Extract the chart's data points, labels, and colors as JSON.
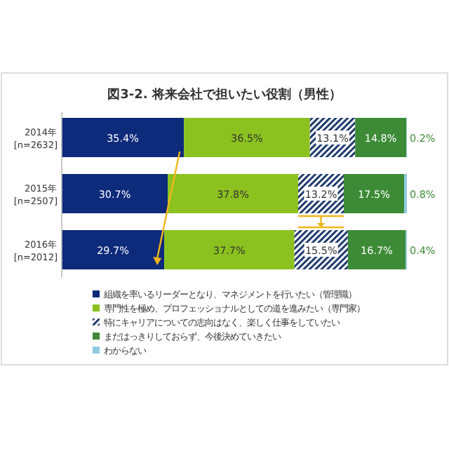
{
  "chart_data": {
    "type": "bar",
    "orientation": "horizontal",
    "stacked": true,
    "title": "図3-2. 将来会社で担いたい役割（男性）",
    "categories": [
      "2014年\n[n=2632]",
      "2015年\n[n=2507]",
      "2016年\n[n=2012]"
    ],
    "series": [
      {
        "name": "組織を率いるリーダーとなり、マネジメントを行いたい（管理職）",
        "color": "#0e2a7a",
        "values": [
          35.4,
          30.7,
          29.7
        ],
        "value_labels": [
          "35.4%",
          "30.7%",
          "29.7%"
        ]
      },
      {
        "name": "専門性を極め、プロフェッショナルとしての道を進みたい（専門家）",
        "color": "#8cc21f",
        "values": [
          36.5,
          37.8,
          37.7
        ],
        "value_labels": [
          "36.5%",
          "37.8%",
          "37.7%"
        ]
      },
      {
        "name": "特にキャリアについての志向はなく、楽しく仕事をしていたい",
        "color": "#1f3a6e",
        "values": [
          13.1,
          13.2,
          15.5
        ],
        "value_labels": [
          "13.1%",
          "13.2%",
          "15.5%"
        ]
      },
      {
        "name": "まだはっきりしておらず、今後決めていきたい",
        "color": "#3d8b37",
        "values": [
          14.8,
          17.5,
          16.7
        ],
        "value_labels": [
          "14.8%",
          "17.5%",
          "16.7%"
        ]
      },
      {
        "name": "わからない",
        "color": "#8fcbe0",
        "values": [
          0.2,
          0.8,
          0.4
        ],
        "value_labels": [
          "0.2%",
          "0.8%",
          "0.4%"
        ]
      }
    ],
    "tick_labels": "y",
    "legend": "bottom"
  }
}
